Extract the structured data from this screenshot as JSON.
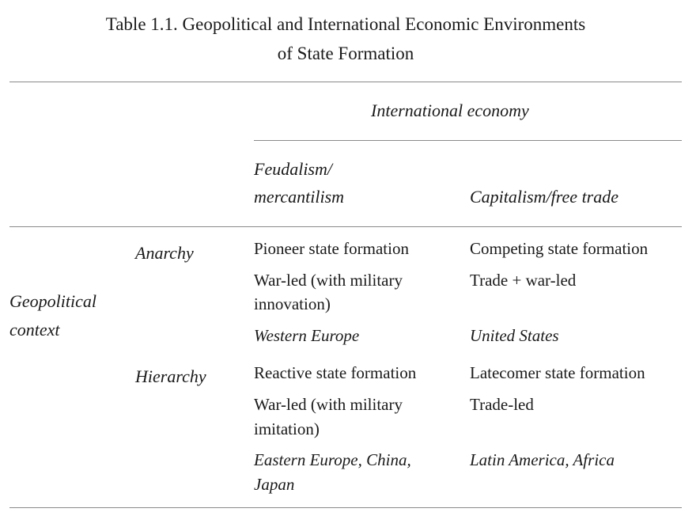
{
  "table": {
    "title_line1": "Table 1.1. Geopolitical and International Economic Environments",
    "title_line2": "of State Formation",
    "spanning_header": "International economy",
    "column_headers": {
      "col1_line1": "Feudalism/",
      "col1_line2": "mercantilism",
      "col2": "Capitalism/free trade"
    },
    "row_group_label_line1": "Geopolitical",
    "row_group_label_line2": "context",
    "rows": [
      {
        "label": "Anarchy",
        "col1": {
          "type": "Pioneer state formation",
          "driver_line1": "War-led (with military",
          "driver_line2": "innovation)",
          "example": "Western Europe"
        },
        "col2": {
          "type": "Competing state formation",
          "driver_line1": "Trade + war-led",
          "example": "United States"
        }
      },
      {
        "label": "Hierarchy",
        "col1": {
          "type": "Reactive state formation",
          "driver_line1": "War-led (with military",
          "driver_line2": "imitation)",
          "example_line1": "Eastern Europe, China,",
          "example_line2": "Japan"
        },
        "col2": {
          "type": "Latecomer state formation",
          "driver_line1": "Trade-led",
          "example": "Latin America, Africa"
        }
      }
    ]
  }
}
